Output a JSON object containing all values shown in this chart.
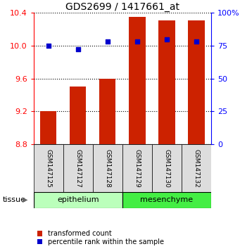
{
  "title": "GDS2699 / 1417661_at",
  "categories": [
    "GSM147125",
    "GSM147127",
    "GSM147128",
    "GSM147129",
    "GSM147130",
    "GSM147132"
  ],
  "bar_values": [
    9.2,
    9.5,
    9.6,
    10.35,
    10.3,
    10.3
  ],
  "dot_values": [
    10.0,
    9.95,
    10.05,
    10.05,
    10.07,
    10.05
  ],
  "bar_bottom": 8.8,
  "ylim": [
    8.8,
    10.4
  ],
  "yticks": [
    8.8,
    9.2,
    9.6,
    10.0,
    10.4
  ],
  "right_ylim": [
    0,
    100
  ],
  "right_yticks": [
    0,
    25,
    50,
    75,
    100
  ],
  "bar_color": "#cc2200",
  "dot_color": "#0000cc",
  "tissue_groups": [
    {
      "label": "epithelium",
      "indices": [
        0,
        1,
        2
      ],
      "color": "#bbffbb"
    },
    {
      "label": "mesenchyme",
      "indices": [
        3,
        4,
        5
      ],
      "color": "#44ee44"
    }
  ],
  "legend_bar_label": "transformed count",
  "legend_dot_label": "percentile rank within the sample",
  "tissue_label": "tissue",
  "title_fontsize": 10,
  "tick_fontsize": 8,
  "sample_fontsize": 6.5,
  "tissue_fontsize": 8,
  "legend_fontsize": 7,
  "bar_width": 0.55,
  "sample_box_color": "#dddddd",
  "border_color": "#000000"
}
